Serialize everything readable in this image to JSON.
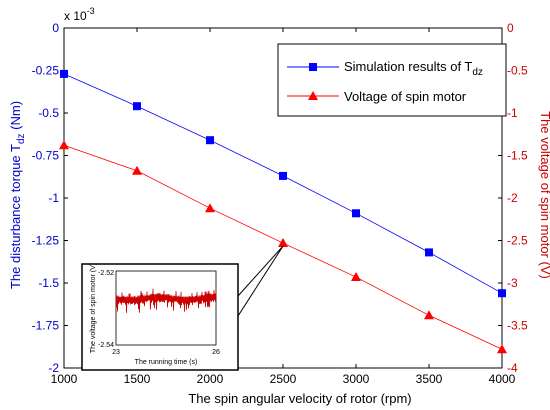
{
  "chart_data": {
    "type": "line",
    "xlabel": "The spin angular velocity of rotor (rpm)",
    "ylabel_left": "The disturbance torque T",
    "ylabel_left_sub": "dz",
    "ylabel_left_unit": " (Nm)",
    "ylabel_right": "The voltage of spin motor (V)",
    "left_scale_label": "x 10",
    "left_scale_exp": "-3",
    "xlim": [
      1000,
      4000
    ],
    "xticks": [
      1000,
      1500,
      2000,
      2500,
      3000,
      3500,
      4000
    ],
    "ylim_left": [
      -2,
      0
    ],
    "yticks_left": [
      0,
      -0.25,
      -0.5,
      -0.75,
      -1,
      -1.25,
      -1.5,
      -1.75,
      -2
    ],
    "ylim_right": [
      -4,
      0
    ],
    "yticks_right": [
      0,
      -0.5,
      -1,
      -1.5,
      -2,
      -2.5,
      -3,
      -3.5,
      -4
    ],
    "x": [
      1000,
      1500,
      2000,
      2500,
      3000,
      3500,
      4000
    ],
    "series": [
      {
        "name": "Simulation results of T",
        "name_sub": "dz",
        "axis": "left",
        "color": "#0000ff",
        "marker": "square",
        "values": [
          -0.27,
          -0.46,
          -0.66,
          -0.87,
          -1.09,
          -1.32,
          -1.56
        ]
      },
      {
        "name": "Voltage of spin motor",
        "axis": "right",
        "color": "#ff0000",
        "marker": "triangle",
        "values": [
          -1.38,
          -1.68,
          -2.12,
          -2.53,
          -2.93,
          -3.38,
          -3.78
        ]
      }
    ],
    "legend_position": "top-right",
    "grid": false,
    "inset": {
      "xlabel": "The running time (s)",
      "ylabel": "The voltage of spin motor (V)",
      "xlim": [
        23,
        26
      ],
      "ylim": [
        -2.54,
        -2.52
      ],
      "xtick_labels": [
        "23",
        "26"
      ],
      "ytick_labels": [
        "-2.52",
        "-2.54"
      ],
      "color": "#cc0000",
      "callout_from_x": 2500
    }
  }
}
